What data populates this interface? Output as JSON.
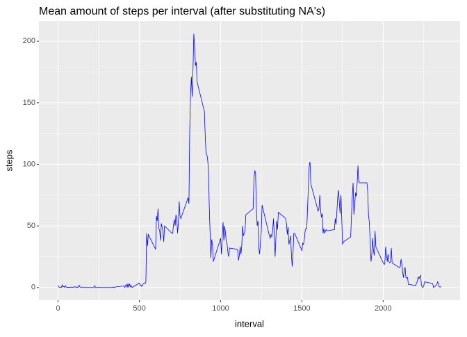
{
  "chart_data": {
    "type": "line",
    "title": "Mean amount of steps per interval (after substituting NA's)",
    "x_label": "interval",
    "y_label": "steps",
    "x": [
      0,
      5,
      10,
      15,
      20,
      25,
      30,
      35,
      40,
      45,
      50,
      55,
      100,
      105,
      110,
      115,
      120,
      125,
      130,
      135,
      140,
      145,
      150,
      155,
      200,
      205,
      210,
      215,
      220,
      225,
      230,
      235,
      240,
      245,
      250,
      255,
      300,
      305,
      310,
      315,
      320,
      325,
      330,
      335,
      340,
      345,
      350,
      355,
      400,
      405,
      410,
      415,
      420,
      425,
      430,
      435,
      440,
      445,
      450,
      455,
      500,
      505,
      510,
      515,
      520,
      525,
      530,
      535,
      540,
      545,
      550,
      555,
      600,
      605,
      610,
      615,
      620,
      625,
      630,
      635,
      640,
      645,
      650,
      655,
      700,
      705,
      710,
      715,
      720,
      725,
      730,
      735,
      740,
      745,
      750,
      755,
      800,
      805,
      810,
      815,
      820,
      825,
      830,
      835,
      840,
      845,
      850,
      855,
      900,
      905,
      910,
      915,
      920,
      925,
      930,
      935,
      940,
      945,
      950,
      955,
      1000,
      1005,
      1010,
      1015,
      1020,
      1025,
      1030,
      1035,
      1040,
      1045,
      1050,
      1055,
      1100,
      1105,
      1110,
      1115,
      1120,
      1125,
      1130,
      1135,
      1140,
      1145,
      1150,
      1155,
      1200,
      1205,
      1210,
      1215,
      1220,
      1225,
      1230,
      1235,
      1240,
      1245,
      1250,
      1255,
      1300,
      1305,
      1310,
      1315,
      1320,
      1325,
      1330,
      1335,
      1340,
      1345,
      1350,
      1355,
      1400,
      1405,
      1410,
      1415,
      1420,
      1425,
      1430,
      1435,
      1440,
      1445,
      1450,
      1455,
      1500,
      1505,
      1510,
      1515,
      1520,
      1525,
      1530,
      1535,
      1540,
      1545,
      1550,
      1555,
      1600,
      1605,
      1610,
      1615,
      1620,
      1625,
      1630,
      1635,
      1640,
      1645,
      1650,
      1655,
      1700,
      1705,
      1710,
      1715,
      1720,
      1725,
      1730,
      1735,
      1740,
      1745,
      1750,
      1755,
      1800,
      1805,
      1810,
      1815,
      1820,
      1825,
      1830,
      1835,
      1840,
      1845,
      1850,
      1855,
      1900,
      1905,
      1910,
      1915,
      1920,
      1925,
      1930,
      1935,
      1940,
      1945,
      1950,
      1955,
      2000,
      2005,
      2010,
      2015,
      2020,
      2025,
      2030,
      2035,
      2040,
      2045,
      2050,
      2055,
      2100,
      2105,
      2110,
      2115,
      2120,
      2125,
      2130,
      2135,
      2140,
      2145,
      2150,
      2155,
      2200,
      2205,
      2210,
      2215,
      2220,
      2225,
      2230,
      2235,
      2240,
      2245,
      2250,
      2255,
      2300,
      2305,
      2310,
      2315,
      2320,
      2325,
      2330,
      2335,
      2340,
      2345,
      2350,
      2355
    ],
    "values": [
      1.7,
      0.3,
      0.1,
      0.2,
      0.1,
      2.1,
      0.5,
      0.9,
      0,
      1.5,
      0.3,
      0.1,
      0.3,
      0.7,
      0.2,
      0.3,
      0,
      1.1,
      1.8,
      0.2,
      0.2,
      0.4,
      0.3,
      0,
      0,
      0,
      0,
      0,
      0,
      1.5,
      0,
      0,
      0,
      0,
      0.2,
      0,
      0,
      0,
      0,
      0,
      0,
      0,
      0,
      0,
      0.4,
      0,
      0,
      0.5,
      1.1,
      1.3,
      0,
      1.5,
      2.6,
      0,
      3.2,
      0,
      2.9,
      0.5,
      1.5,
      0,
      3.6,
      1.5,
      2,
      0.8,
      2,
      3.2,
      3.6,
      3.1,
      4.6,
      44,
      33.7,
      43,
      31,
      58,
      54,
      64,
      48,
      46,
      38,
      52,
      49,
      46,
      37,
      50,
      44,
      44,
      51,
      55,
      50,
      59,
      56,
      44,
      52,
      70,
      58,
      56,
      73,
      68,
      129,
      158,
      171,
      155,
      177,
      206,
      196,
      180,
      183,
      167,
      143,
      124,
      109,
      108,
      104,
      96,
      66,
      45,
      24,
      39,
      35,
      21,
      40,
      27,
      42,
      53,
      38,
      50,
      44,
      37,
      35,
      28,
      25,
      32,
      31,
      30,
      22,
      26,
      33,
      27,
      34,
      50,
      42,
      44,
      46,
      59,
      64,
      88,
      95,
      93,
      63,
      50,
      54,
      32,
      27,
      38,
      45,
      67,
      42,
      40,
      43,
      41,
      46,
      56,
      43,
      25,
      40,
      54,
      47,
      61,
      56,
      52,
      43,
      49,
      35,
      38,
      42,
      28,
      17,
      26,
      44,
      44,
      30,
      36,
      35,
      39,
      46,
      48,
      48,
      65,
      83,
      99,
      102,
      84,
      62,
      64,
      75,
      63,
      57,
      60,
      44,
      48,
      44,
      46,
      47,
      46,
      47,
      56,
      51,
      61,
      73,
      79,
      69,
      60,
      75,
      57,
      35,
      37,
      41,
      58,
      74,
      85,
      59,
      68,
      77,
      74,
      85,
      99,
      86,
      85,
      85,
      78,
      58,
      53,
      37,
      21,
      27,
      40,
      30,
      26,
      46,
      33,
      20,
      19,
      19,
      33,
      27,
      21,
      27,
      21,
      20,
      21,
      32,
      20,
      16,
      17,
      23,
      19,
      12,
      8,
      15,
      16,
      8,
      7.8,
      8,
      2.6,
      1.5,
      3.7,
      4.8,
      8.5,
      7.1,
      8.7,
      9.8,
      2.2,
      0.3,
      0.1,
      1.6,
      4.6,
      3.3,
      2.8,
      0,
      0.8,
      1,
      1.6,
      2.6,
      4.7,
      3.3,
      0.6,
      0.2,
      1.1
    ],
    "color": "#0000ff",
    "xlim": [
      -118,
      2473
    ],
    "xticks": [
      0,
      500,
      1000,
      1500,
      2000
    ],
    "ylim": [
      -10.3,
      216.5
    ],
    "yticks": [
      0,
      50,
      100,
      150,
      200
    ],
    "grid": true
  }
}
